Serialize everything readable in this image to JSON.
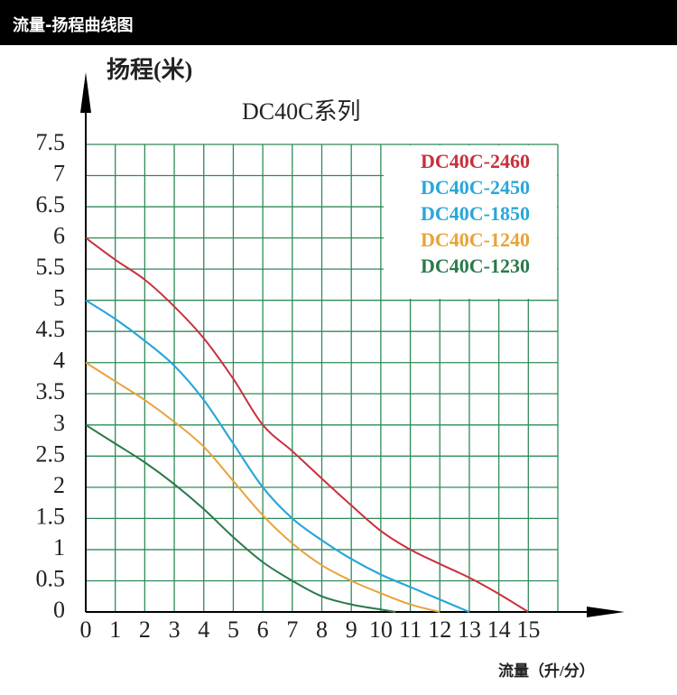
{
  "header": {
    "title": "流量-扬程曲线图"
  },
  "chart_data": {
    "type": "line",
    "title": "扬程(米)",
    "subtitle": "DC40C系列",
    "x_label": "流量（升/分）",
    "xlim": [
      0,
      16
    ],
    "ylim": [
      0,
      7.5
    ],
    "xticks": [
      0,
      1,
      2,
      3,
      4,
      5,
      6,
      7,
      8,
      9,
      10,
      11,
      12,
      13,
      14,
      15
    ],
    "yticks": [
      0,
      0.5,
      1,
      1.5,
      2,
      2.5,
      3,
      3.5,
      4,
      4.5,
      5,
      5.5,
      6,
      6.5,
      7,
      7.5
    ],
    "grid": true,
    "legend": "upper right",
    "series": [
      {
        "name": "DC40C-2460",
        "color": "#c9303c",
        "x": [
          0,
          1,
          2,
          3,
          4,
          5,
          6,
          7,
          8,
          9,
          10,
          11,
          12,
          13,
          14,
          15
        ],
        "values": [
          6,
          5.65,
          5.33,
          4.9,
          4.39,
          3.74,
          3.0,
          2.58,
          2.14,
          1.71,
          1.3,
          1.0,
          0.77,
          0.55,
          0.29,
          0
        ]
      },
      {
        "name": "DC40C-2450",
        "color": "#2aa7d8",
        "x": [
          0,
          1,
          2,
          3,
          4,
          5,
          6,
          7,
          8,
          9,
          10,
          11,
          12,
          13
        ],
        "values": [
          5,
          4.7,
          4.35,
          3.95,
          3.4,
          2.7,
          2.0,
          1.5,
          1.15,
          0.85,
          0.6,
          0.4,
          0.2,
          0
        ]
      },
      {
        "name": "DC40C-1850",
        "color": "#2aa7d8",
        "x": [
          0,
          1,
          2,
          3,
          4,
          5,
          6,
          7,
          8,
          9,
          10,
          11,
          12,
          13
        ],
        "values": [
          5,
          4.7,
          4.35,
          3.95,
          3.4,
          2.7,
          2.0,
          1.5,
          1.15,
          0.85,
          0.6,
          0.4,
          0.2,
          0
        ]
      },
      {
        "name": "DC40C-1240",
        "color": "#e8a33a",
        "x": [
          0,
          1,
          2,
          3,
          4,
          5,
          6,
          7,
          8,
          9,
          10,
          11,
          12
        ],
        "values": [
          4,
          3.7,
          3.4,
          3.05,
          2.65,
          2.1,
          1.55,
          1.1,
          0.75,
          0.5,
          0.3,
          0.12,
          0
        ]
      },
      {
        "name": "DC40C-1230",
        "color": "#2a7a4a",
        "x": [
          0,
          1,
          2,
          3,
          4,
          5,
          6,
          7,
          8,
          9,
          10,
          10.5
        ],
        "values": [
          3,
          2.7,
          2.4,
          2.05,
          1.65,
          1.2,
          0.8,
          0.5,
          0.25,
          0.12,
          0.04,
          0
        ]
      }
    ]
  }
}
